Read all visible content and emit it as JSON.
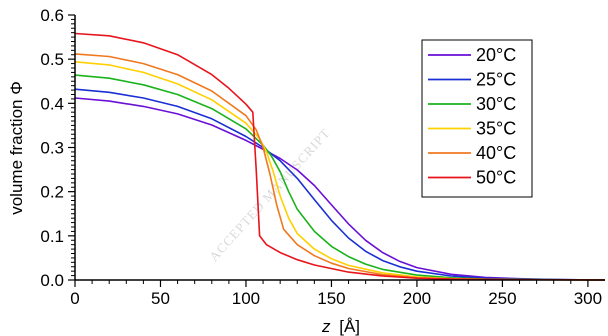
{
  "chart_data": {
    "type": "line",
    "xlabel": "z",
    "xlabel_unit": "[Å]",
    "ylabel": "volume fraction Φ",
    "xlim": [
      0,
      310
    ],
    "ylim": [
      0,
      0.6
    ],
    "x_ticks": [
      "0",
      "50",
      "100",
      "150",
      "200",
      "250",
      "300"
    ],
    "y_ticks": [
      "0.0",
      "0.1",
      "0.2",
      "0.3",
      "0.4",
      "0.5",
      "0.6"
    ],
    "grid": false,
    "legend_position": "top-right",
    "watermark": "ACCEPTED MANUSCRIPT",
    "series": [
      {
        "name": "20°C",
        "color": "#6a0fd6",
        "x": [
          0,
          20,
          40,
          60,
          80,
          100,
          110,
          120,
          130,
          140,
          150,
          160,
          170,
          180,
          190,
          200,
          220,
          240,
          260,
          280,
          310
        ],
        "y": [
          0.412,
          0.405,
          0.393,
          0.376,
          0.351,
          0.316,
          0.296,
          0.275,
          0.249,
          0.214,
          0.17,
          0.127,
          0.09,
          0.062,
          0.042,
          0.028,
          0.013,
          0.006,
          0.003,
          0.001,
          0.0
        ]
      },
      {
        "name": "25°C",
        "color": "#1a2fd4",
        "x": [
          0,
          20,
          40,
          60,
          80,
          100,
          110,
          120,
          130,
          140,
          150,
          160,
          170,
          180,
          190,
          200,
          220,
          240,
          260,
          280,
          310
        ],
        "y": [
          0.432,
          0.425,
          0.412,
          0.393,
          0.365,
          0.325,
          0.3,
          0.27,
          0.23,
          0.182,
          0.135,
          0.095,
          0.065,
          0.044,
          0.03,
          0.02,
          0.009,
          0.004,
          0.002,
          0.001,
          0.0
        ]
      },
      {
        "name": "30°C",
        "color": "#1bb31b",
        "x": [
          0,
          20,
          40,
          60,
          80,
          100,
          110,
          115,
          120,
          125,
          130,
          140,
          150,
          160,
          170,
          180,
          200,
          220,
          240,
          270,
          310
        ],
        "y": [
          0.464,
          0.457,
          0.442,
          0.42,
          0.388,
          0.342,
          0.305,
          0.28,
          0.245,
          0.2,
          0.16,
          0.11,
          0.076,
          0.053,
          0.036,
          0.024,
          0.011,
          0.005,
          0.002,
          0.001,
          0.0
        ]
      },
      {
        "name": "35°C",
        "color": "#ffd000",
        "x": [
          0,
          20,
          40,
          60,
          80,
          100,
          108,
          112,
          116,
          120,
          125,
          130,
          140,
          150,
          160,
          180,
          200,
          220,
          250,
          310
        ],
        "y": [
          0.494,
          0.487,
          0.47,
          0.444,
          0.408,
          0.355,
          0.32,
          0.29,
          0.245,
          0.19,
          0.14,
          0.105,
          0.07,
          0.048,
          0.033,
          0.016,
          0.007,
          0.003,
          0.001,
          0.0
        ]
      },
      {
        "name": "40°C",
        "color": "#f07820",
        "x": [
          0,
          20,
          40,
          60,
          80,
          100,
          106,
          110,
          114,
          118,
          122,
          130,
          140,
          150,
          160,
          180,
          200,
          220,
          250,
          310
        ],
        "y": [
          0.512,
          0.506,
          0.49,
          0.465,
          0.428,
          0.372,
          0.34,
          0.3,
          0.24,
          0.17,
          0.115,
          0.08,
          0.055,
          0.038,
          0.026,
          0.012,
          0.005,
          0.002,
          0.001,
          0.0
        ]
      },
      {
        "name": "50°C",
        "color": "#e8141c",
        "x": [
          0,
          20,
          40,
          60,
          80,
          90,
          100,
          104,
          106,
          108,
          112,
          120,
          130,
          140,
          160,
          180,
          200,
          220,
          250,
          310
        ],
        "y": [
          0.558,
          0.553,
          0.537,
          0.51,
          0.465,
          0.434,
          0.398,
          0.38,
          0.25,
          0.1,
          0.08,
          0.062,
          0.046,
          0.034,
          0.018,
          0.009,
          0.004,
          0.002,
          0.001,
          0.0
        ]
      }
    ]
  }
}
